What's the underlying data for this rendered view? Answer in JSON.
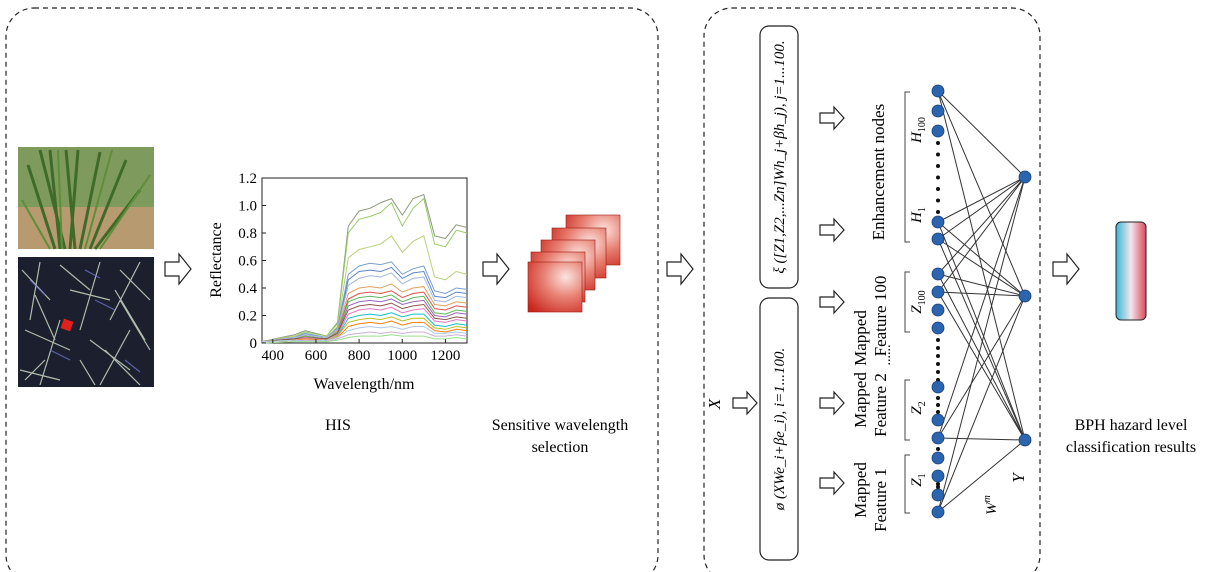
{
  "left_panel": {
    "his_label": "HIS",
    "sensitive_label_line1": "Sensitive wavelength",
    "sensitive_label_line2": "selection"
  },
  "spectrum_chart": {
    "chart_data": {
      "type": "line",
      "title": "",
      "xlabel": "Wavelength/nm",
      "ylabel": "Reflectance",
      "xlim": [
        350,
        1300
      ],
      "ylim": [
        0,
        1.2
      ],
      "xticks": [
        "400",
        "600",
        "800",
        "1000",
        "1200"
      ],
      "yticks": [
        "0",
        "0.2",
        "0.4",
        "0.6",
        "0.8",
        "1.0",
        "1.2"
      ],
      "x": [
        350,
        500,
        550,
        650,
        700,
        750,
        800,
        850,
        900,
        950,
        1000,
        1050,
        1100,
        1150,
        1200,
        1250,
        1300
      ],
      "series": [
        {
          "values": [
            0.01,
            0.06,
            0.09,
            0.05,
            0.15,
            0.85,
            0.96,
            0.98,
            1.02,
            1.05,
            0.93,
            1.05,
            1.08,
            0.78,
            0.76,
            0.86,
            0.84
          ],
          "color": "#8a9a7a"
        },
        {
          "values": [
            0.01,
            0.05,
            0.08,
            0.05,
            0.14,
            0.8,
            0.9,
            0.92,
            0.95,
            1.02,
            0.85,
            0.98,
            1.05,
            0.72,
            0.7,
            0.82,
            0.8
          ],
          "color": "#9acb6a"
        },
        {
          "values": [
            0.01,
            0.05,
            0.07,
            0.04,
            0.12,
            0.62,
            0.68,
            0.7,
            0.72,
            0.78,
            0.66,
            0.74,
            0.78,
            0.48,
            0.46,
            0.52,
            0.5
          ],
          "color": "#b7cf7a"
        },
        {
          "values": [
            0.01,
            0.04,
            0.07,
            0.04,
            0.11,
            0.5,
            0.56,
            0.58,
            0.57,
            0.59,
            0.5,
            0.54,
            0.56,
            0.38,
            0.36,
            0.4,
            0.39
          ],
          "color": "#7a9ed0"
        },
        {
          "values": [
            0.01,
            0.04,
            0.06,
            0.04,
            0.1,
            0.46,
            0.52,
            0.53,
            0.52,
            0.55,
            0.47,
            0.51,
            0.52,
            0.34,
            0.33,
            0.37,
            0.36
          ],
          "color": "#5b86c4"
        },
        {
          "values": [
            0.01,
            0.04,
            0.06,
            0.04,
            0.1,
            0.42,
            0.47,
            0.49,
            0.48,
            0.51,
            0.43,
            0.47,
            0.48,
            0.31,
            0.3,
            0.34,
            0.33
          ],
          "color": "#a0b8e0"
        },
        {
          "values": [
            0.01,
            0.03,
            0.05,
            0.03,
            0.09,
            0.36,
            0.4,
            0.41,
            0.4,
            0.43,
            0.37,
            0.4,
            0.41,
            0.28,
            0.27,
            0.3,
            0.29
          ],
          "color": "#e0a060"
        },
        {
          "values": [
            0.01,
            0.03,
            0.05,
            0.03,
            0.08,
            0.32,
            0.36,
            0.37,
            0.36,
            0.38,
            0.33,
            0.36,
            0.37,
            0.25,
            0.24,
            0.27,
            0.26
          ],
          "color": "#d9534f"
        },
        {
          "values": [
            0.01,
            0.03,
            0.05,
            0.03,
            0.08,
            0.3,
            0.33,
            0.34,
            0.33,
            0.35,
            0.3,
            0.33,
            0.34,
            0.22,
            0.21,
            0.24,
            0.23
          ],
          "color": "#5cb85c"
        },
        {
          "values": [
            0.01,
            0.03,
            0.04,
            0.03,
            0.07,
            0.27,
            0.3,
            0.31,
            0.3,
            0.32,
            0.28,
            0.3,
            0.31,
            0.2,
            0.19,
            0.22,
            0.21
          ],
          "color": "#9467bd"
        },
        {
          "values": [
            0.01,
            0.03,
            0.04,
            0.03,
            0.07,
            0.24,
            0.27,
            0.28,
            0.27,
            0.29,
            0.25,
            0.27,
            0.28,
            0.18,
            0.17,
            0.19,
            0.18
          ],
          "color": "#8c564b"
        },
        {
          "values": [
            0.01,
            0.02,
            0.04,
            0.02,
            0.06,
            0.21,
            0.24,
            0.25,
            0.24,
            0.26,
            0.22,
            0.24,
            0.25,
            0.16,
            0.15,
            0.17,
            0.16
          ],
          "color": "#e377c2"
        },
        {
          "values": [
            0.01,
            0.02,
            0.03,
            0.02,
            0.05,
            0.18,
            0.2,
            0.21,
            0.2,
            0.22,
            0.19,
            0.21,
            0.21,
            0.13,
            0.12,
            0.14,
            0.13
          ],
          "color": "#17becf"
        },
        {
          "values": [
            0.01,
            0.02,
            0.03,
            0.02,
            0.05,
            0.15,
            0.17,
            0.18,
            0.17,
            0.19,
            0.16,
            0.18,
            0.18,
            0.11,
            0.1,
            0.12,
            0.11
          ],
          "color": "#bcbd22"
        },
        {
          "values": [
            0.01,
            0.02,
            0.03,
            0.02,
            0.04,
            0.12,
            0.14,
            0.15,
            0.14,
            0.16,
            0.13,
            0.15,
            0.15,
            0.09,
            0.08,
            0.1,
            0.09
          ],
          "color": "#ff7f0e"
        },
        {
          "values": [
            0.01,
            0.02,
            0.02,
            0.02,
            0.04,
            0.09,
            0.11,
            0.12,
            0.11,
            0.12,
            0.1,
            0.12,
            0.12,
            0.07,
            0.07,
            0.08,
            0.07
          ],
          "color": "#aec7e8"
        },
        {
          "values": [
            0.0,
            0.01,
            0.02,
            0.01,
            0.03,
            0.06,
            0.07,
            0.08,
            0.07,
            0.08,
            0.07,
            0.08,
            0.08,
            0.05,
            0.05,
            0.06,
            0.05
          ],
          "color": "#c5b0d5"
        },
        {
          "values": [
            0.0,
            0.01,
            0.01,
            0.01,
            0.02,
            0.04,
            0.05,
            0.05,
            0.05,
            0.06,
            0.05,
            0.05,
            0.05,
            0.03,
            0.03,
            0.04,
            0.03
          ],
          "color": "#98df8a"
        }
      ]
    }
  },
  "bls_panel": {
    "input_symbol": "X",
    "enhancement_formula": "ξ ([Z1,Z2,...Zn]Wh_j+βh_j), j=1...100.",
    "mapping_formula": "ø (XWe_i+βe_i), i=1...100.",
    "enhancement_label": "Enhancement nodes",
    "h_top": "H",
    "h_top_sub": "100",
    "h_bottom": "H",
    "h_bottom_sub": "1",
    "mapped_word": "Mapped",
    "feature_100": "Feature 100",
    "feature_2": "Feature 2",
    "feature_1": "Feature 1",
    "z100": "Z",
    "z100_sub": "100",
    "z2": "Z",
    "z2_sub": "2",
    "z1": "Z",
    "z1_sub": "1",
    "ellipsis": "......",
    "weight_symbol": "W",
    "weight_sup": "m",
    "output_symbol": "Y"
  },
  "result": {
    "label_line1": "BPH hazard level",
    "label_line2": "classification results"
  },
  "colors": {
    "node": "#2b65b0",
    "node_stroke": "#1a3f73",
    "dashed_border": "#222222",
    "bar_gradient_top": "#3bb6d8",
    "bar_gradient_bottom": "#d9485a"
  }
}
